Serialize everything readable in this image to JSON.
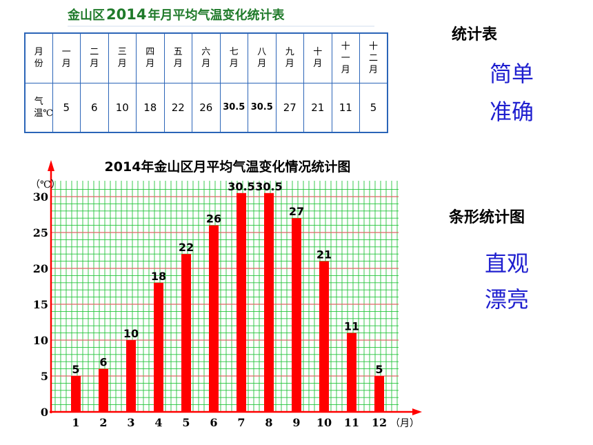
{
  "table_title": {
    "prefix": "金山区",
    "year": "2014",
    "suffix": "年月平均气温变化统计表"
  },
  "table": {
    "row_head_month": "月份",
    "months": [
      "一月",
      "二月",
      "三月",
      "四月",
      "五月",
      "六月",
      "七月",
      "八月",
      "九月",
      "十月",
      "十一月",
      "十二月"
    ],
    "row_head_temp": "气温℃",
    "temps": [
      "5",
      "6",
      "10",
      "18",
      "22",
      "26",
      "30.5",
      "30.5",
      "27",
      "21",
      "11",
      "5"
    ]
  },
  "side": {
    "table_heading": "统计表",
    "table_words": [
      "简单",
      "准确"
    ],
    "chart_heading": "条形统计图",
    "chart_words": [
      "直观",
      "漂亮"
    ]
  },
  "chart_data": {
    "type": "bar",
    "title": "2014年金山区月平均气温变化情况统计图",
    "y_unit": "（℃）",
    "x_unit": "（月）",
    "categories": [
      "1",
      "2",
      "3",
      "4",
      "5",
      "6",
      "7",
      "8",
      "9",
      "10",
      "11",
      "12"
    ],
    "values": [
      5,
      6,
      10,
      18,
      22,
      26,
      30.5,
      30.5,
      27,
      21,
      11,
      5
    ],
    "data_labels": [
      "5",
      "6",
      "10",
      "18",
      "22",
      "26",
      "30.5",
      "30.5",
      "27",
      "21",
      "11",
      "5"
    ],
    "y_ticks": [
      0,
      5,
      10,
      15,
      20,
      25,
      30
    ],
    "ylim": [
      0,
      30
    ],
    "grid": true,
    "bar_color": "#ff0000",
    "grid_color": "#22c43a",
    "axis_color": "#ff0000"
  }
}
